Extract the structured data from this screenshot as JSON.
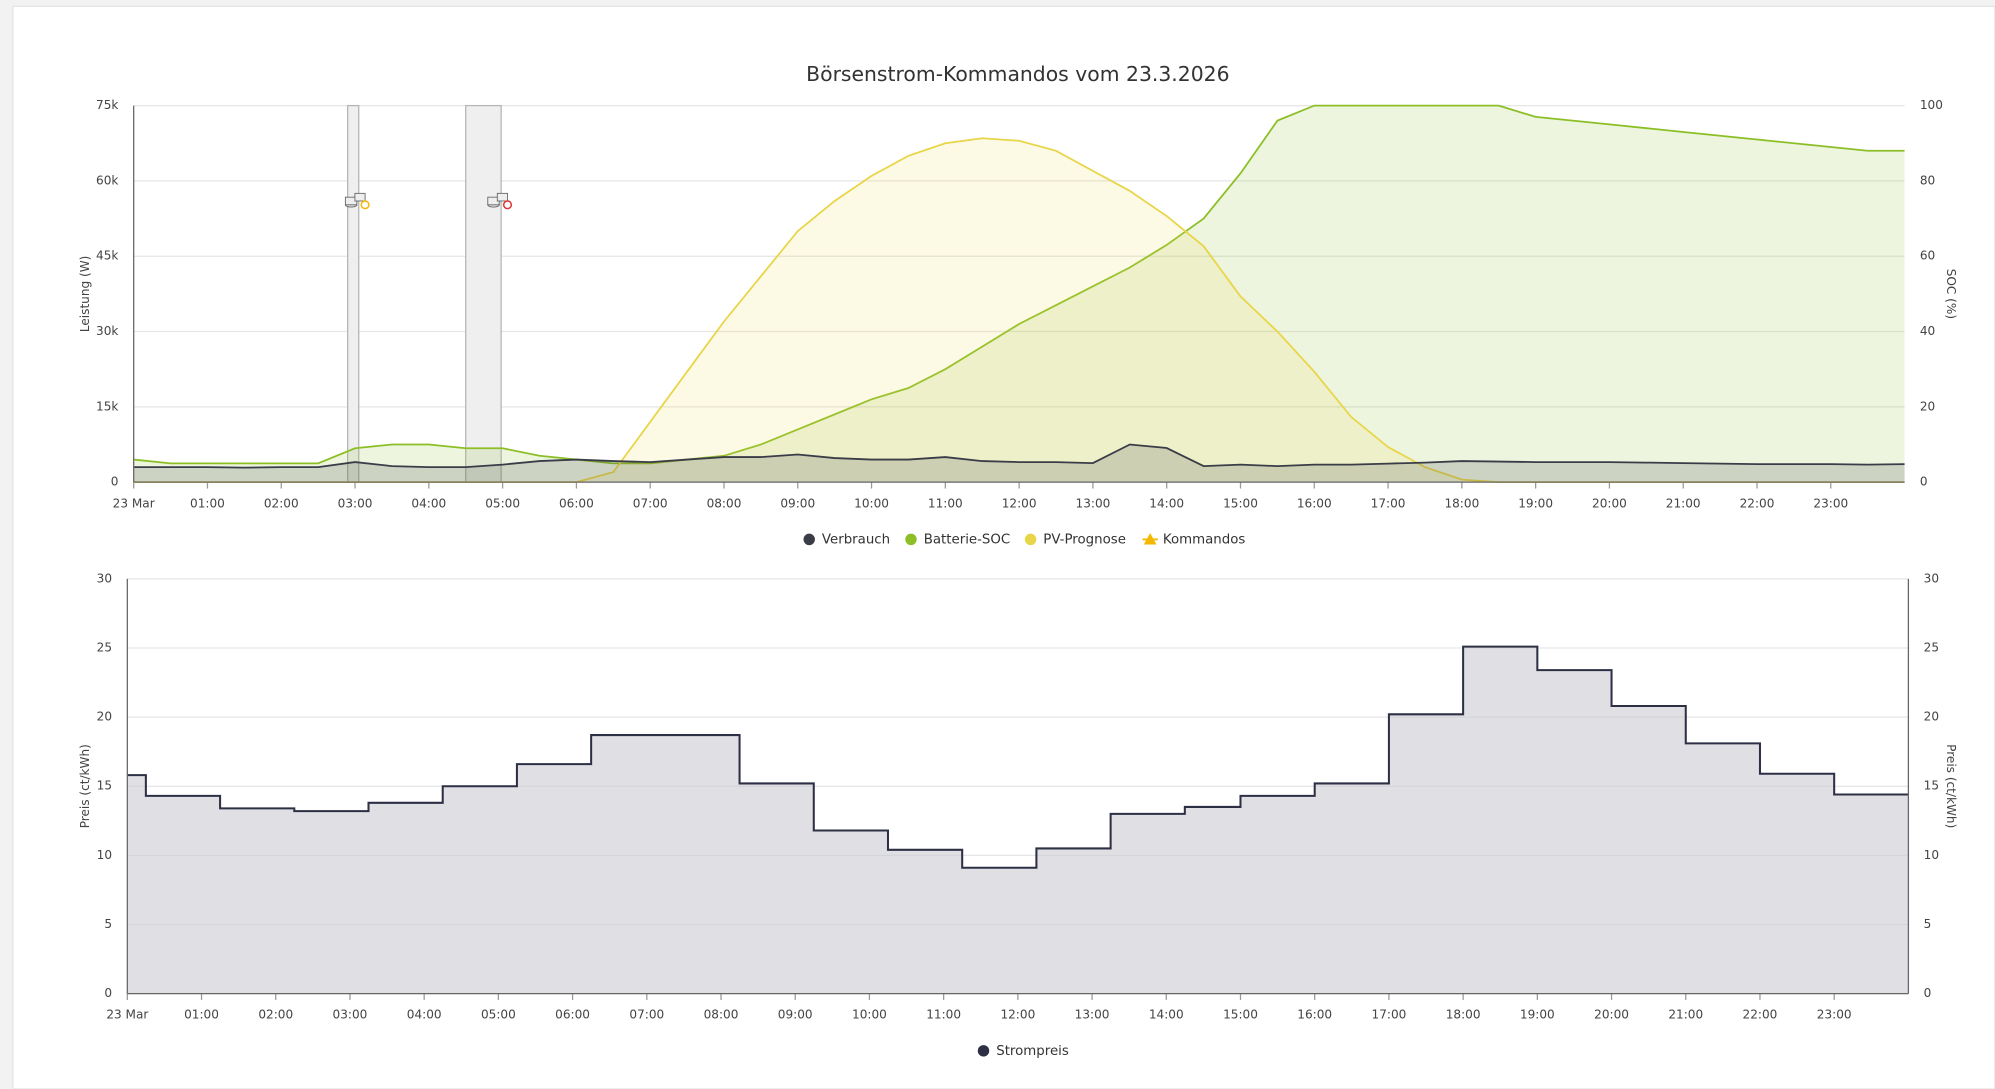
{
  "chart_data": [
    {
      "type": "line",
      "title": "Börsenstrom-Kommandos vom 23.3.2026",
      "y_label": "Leistung (W)",
      "y2_label": "SOC (%)",
      "x": [
        0,
        0.5,
        1,
        1.5,
        2,
        2.5,
        3,
        3.5,
        4,
        4.5,
        5,
        5.5,
        6,
        6.5,
        7,
        7.5,
        8,
        8.5,
        9,
        9.5,
        10,
        10.5,
        11,
        11.5,
        12,
        12.5,
        13,
        13.5,
        14,
        14.5,
        15,
        15.5,
        16,
        16.5,
        17,
        17.5,
        18,
        18.5,
        19,
        19.5,
        20,
        20.5,
        21,
        21.5,
        22,
        22.5,
        23,
        23.5,
        24
      ],
      "xlim": [
        0,
        24
      ],
      "xticks": [
        {
          "value": 0,
          "label": "23 Mar"
        },
        {
          "value": 1,
          "label": "01:00"
        },
        {
          "value": 2,
          "label": "02:00"
        },
        {
          "value": 3,
          "label": "03:00"
        },
        {
          "value": 4,
          "label": "04:00"
        },
        {
          "value": 5,
          "label": "05:00"
        },
        {
          "value": 6,
          "label": "06:00"
        },
        {
          "value": 7,
          "label": "07:00"
        },
        {
          "value": 8,
          "label": "08:00"
        },
        {
          "value": 9,
          "label": "09:00"
        },
        {
          "value": 10,
          "label": "10:00"
        },
        {
          "value": 11,
          "label": "11:00"
        },
        {
          "value": 12,
          "label": "12:00"
        },
        {
          "value": 13,
          "label": "13:00"
        },
        {
          "value": 14,
          "label": "14:00"
        },
        {
          "value": 15,
          "label": "15:00"
        },
        {
          "value": 16,
          "label": "16:00"
        },
        {
          "value": 17,
          "label": "17:00"
        },
        {
          "value": 18,
          "label": "18:00"
        },
        {
          "value": 19,
          "label": "19:00"
        },
        {
          "value": 20,
          "label": "20:00"
        },
        {
          "value": 21,
          "label": "21:00"
        },
        {
          "value": 22,
          "label": "22:00"
        },
        {
          "value": 23,
          "label": "23:00"
        }
      ],
      "ylim": [
        0,
        75000
      ],
      "yticks": [
        0,
        {
          "value": 15000,
          "label": "15k"
        },
        {
          "value": 30000,
          "label": "30k"
        },
        {
          "value": 45000,
          "label": "45k"
        },
        {
          "value": 60000,
          "label": "60k"
        },
        {
          "value": 75000,
          "label": "75k"
        }
      ],
      "y2lim": [
        0,
        100
      ],
      "y2ticks": [
        0,
        20,
        40,
        60,
        80,
        100
      ],
      "grid": true,
      "plot_bands": [
        [
          2.9,
          3.05
        ],
        [
          4.5,
          4.98
        ]
      ],
      "series": [
        {
          "name": "Verbrauch",
          "color": "#3a3c48",
          "values": [
            3000,
            3000,
            3000,
            2900,
            3000,
            3000,
            4000,
            3200,
            3000,
            3000,
            3500,
            4200,
            4500,
            4200,
            4000,
            4500,
            5000,
            5000,
            5500,
            4800,
            4500,
            4500,
            5000,
            4200,
            4000,
            4000,
            3800,
            7500,
            6800,
            3200,
            3500,
            3200,
            3500,
            3500,
            3700,
            3900,
            4200,
            4100,
            4000,
            4000,
            4000,
            3900,
            3800,
            3700,
            3600,
            3600,
            3600,
            3500,
            3600
          ]
        },
        {
          "name": "Batterie-SOC",
          "color": "#8cbf26",
          "axis": "y2",
          "values": [
            6,
            5,
            5,
            5,
            5,
            5,
            9,
            10,
            10,
            9,
            9,
            7,
            6,
            5,
            5,
            6,
            7,
            10,
            14,
            18,
            22,
            25,
            30,
            36,
            42,
            47,
            52,
            57,
            63,
            70,
            82,
            96,
            100,
            100,
            100,
            100,
            100,
            100,
            97,
            96,
            95,
            94,
            93,
            92,
            91,
            90,
            89,
            88,
            88
          ]
        },
        {
          "name": "PV-Prognose",
          "color": "#e8d548",
          "values": [
            0,
            0,
            0,
            0,
            0,
            0,
            0,
            0,
            0,
            0,
            0,
            0,
            0,
            2000,
            12000,
            22000,
            32000,
            41000,
            50000,
            56000,
            61000,
            65000,
            67500,
            68500,
            68000,
            66000,
            62000,
            58000,
            53000,
            47000,
            37000,
            30000,
            22000,
            13000,
            7000,
            3000,
            500,
            0,
            0,
            0,
            0,
            0,
            0,
            0,
            0,
            0,
            0,
            0,
            0
          ]
        },
        {
          "name": "Kommandos",
          "color": "#f5b800",
          "type": "marker",
          "x": [
            3.05,
            4.98
          ],
          "values": [
            56000,
            56000
          ]
        }
      ]
    },
    {
      "type": "step",
      "y_label": "Preis (ct/kWh)",
      "y2_label": "Preis (ct/kWh)",
      "x": [
        0,
        0.25,
        1.25,
        2.25,
        3.25,
        4.25,
        5.25,
        6.25,
        8.25,
        9.25,
        10.25,
        11.25,
        12.25,
        13.25,
        14.25,
        15,
        16,
        17,
        18,
        19,
        20,
        21,
        22,
        23
      ],
      "xlim": [
        0,
        24
      ],
      "xticks": [
        {
          "value": 0,
          "label": "23 Mar"
        },
        {
          "value": 1,
          "label": "01:00"
        },
        {
          "value": 2,
          "label": "02:00"
        },
        {
          "value": 3,
          "label": "03:00"
        },
        {
          "value": 4,
          "label": "04:00"
        },
        {
          "value": 5,
          "label": "05:00"
        },
        {
          "value": 6,
          "label": "06:00"
        },
        {
          "value": 7,
          "label": "07:00"
        },
        {
          "value": 8,
          "label": "08:00"
        },
        {
          "value": 9,
          "label": "09:00"
        },
        {
          "value": 10,
          "label": "10:00"
        },
        {
          "value": 11,
          "label": "11:00"
        },
        {
          "value": 12,
          "label": "12:00"
        },
        {
          "value": 13,
          "label": "13:00"
        },
        {
          "value": 14,
          "label": "14:00"
        },
        {
          "value": 15,
          "label": "15:00"
        },
        {
          "value": 16,
          "label": "16:00"
        },
        {
          "value": 17,
          "label": "17:00"
        },
        {
          "value": 18,
          "label": "18:00"
        },
        {
          "value": 19,
          "label": "19:00"
        },
        {
          "value": 20,
          "label": "20:00"
        },
        {
          "value": 21,
          "label": "21:00"
        },
        {
          "value": 22,
          "label": "22:00"
        },
        {
          "value": 23,
          "label": "23:00"
        }
      ],
      "ylim": [
        0,
        30
      ],
      "yticks": [
        0,
        5,
        10,
        15,
        20,
        25,
        30
      ],
      "y2lim": [
        0,
        30
      ],
      "y2ticks": [
        0,
        5,
        10,
        15,
        20,
        25,
        30
      ],
      "grid": true,
      "series": [
        {
          "name": "Strompreis",
          "color": "#2d2f45",
          "values": [
            15.8,
            14.3,
            13.4,
            13.2,
            13.8,
            15.0,
            16.6,
            18.7,
            15.2,
            11.8,
            10.4,
            9.1,
            10.5,
            13.0,
            13.5,
            14.3,
            15.2,
            20.2,
            25.1,
            23.4,
            20.8,
            18.1,
            15.9,
            14.4
          ]
        }
      ]
    }
  ]
}
